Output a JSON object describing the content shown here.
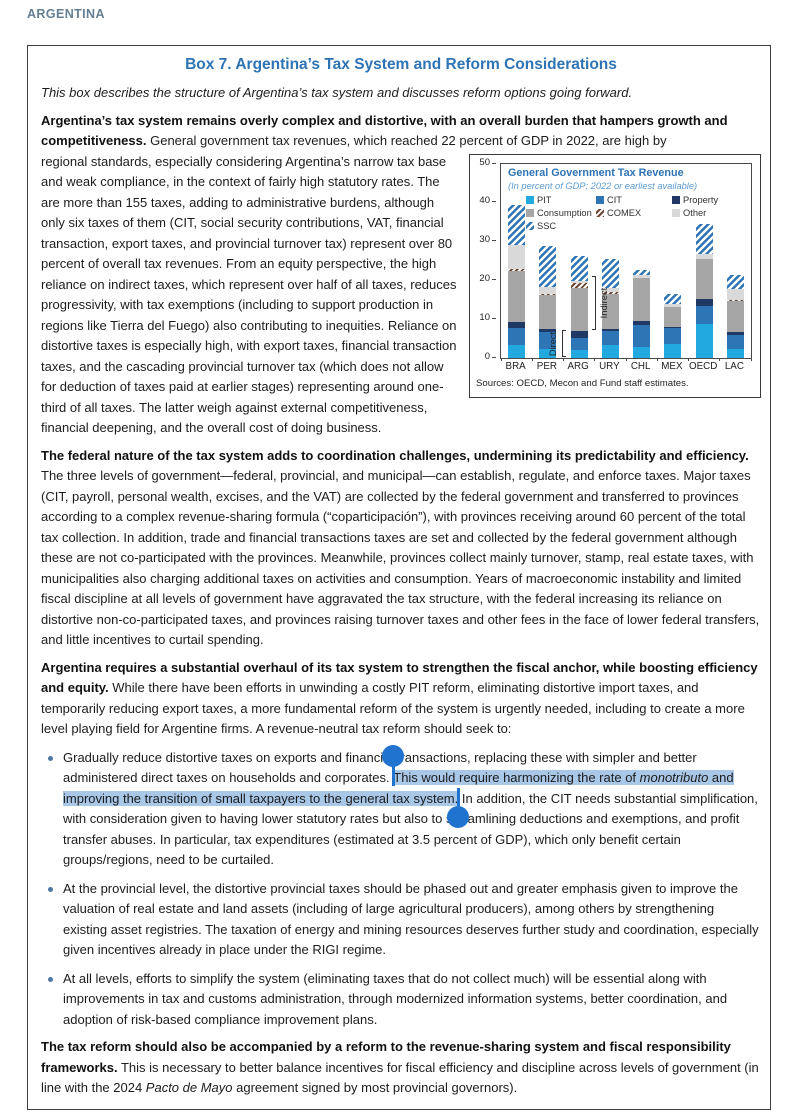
{
  "page": {
    "header": "ARGENTINA"
  },
  "colors": {
    "accent_blue": "#2e74b5",
    "selection_highlight": "#a9c7e7",
    "selection_handle": "#2073cf",
    "header_blue_gray": "#647e93"
  },
  "box": {
    "title": "Box 7. Argentina’s Tax System and Reform Considerations",
    "intro": "This box describes the structure of Argentina’s tax system and discusses reform options going forward.",
    "p1": {
      "lead": "Argentina’s tax system remains overly complex and distortive, with an overall burden that hampers growth and competitiveness.",
      "text_start": " General government tax revenues, which reached 22 percent of GDP in 2022, are high by",
      "text_rest": "regional standards, especially considering Argentina’s narrow tax base and weak compliance, in the context of fairly high statutory rates. The are more than 155 taxes, adding to administrative burdens, although only six taxes of them (CIT, social security contributions, VAT, financial transaction, export taxes, and provincial turnover tax) represent over 80 percent of overall tax revenues. From an equity perspective, the high reliance on indirect taxes, which represent over half of all taxes, reduces progressivity, with tax exemptions (including to support production in regions like Tierra del Fuego) also contributing to inequities. Reliance on distortive taxes is especially high, with export taxes, financial transaction taxes, and the cascading provincial turnover tax (which does not allow for deduction of taxes paid at earlier stages) representing around one-third of all taxes. The latter weigh against external competitiveness, financial deepening, and the overall cost of doing business."
    },
    "p2": {
      "lead": "The federal nature of the tax system adds to coordination challenges, undermining its predictability and efficiency.",
      "text": " The three levels of government—federal, provincial, and municipal—can establish, regulate, and enforce taxes. Major taxes (CIT, payroll, personal wealth, excises, and the VAT) are collected by the federal government and transferred to provinces according to a complex revenue-sharing formula (“coparticipación”), with provinces receiving around 60 percent of the total tax collection. In addition, trade and financial transactions taxes are set and collected by the federal government although these are not co-participated with the provinces. Meanwhile, provinces collect mainly turnover, stamp, real estate taxes, with municipalities also charging additional taxes on activities and consumption. Years of macroeconomic instability and limited fiscal discipline at all levels of government have aggravated the tax structure, with the federal increasing its reliance on distortive non-co-participated taxes, and provinces raising turnover taxes and other fees in the face of lower federal transfers, and little incentives to curtail spending."
    },
    "p3": {
      "lead": "Argentina requires a substantial overhaul of its tax system to strengthen the fiscal anchor, while boosting efficiency and equity.",
      "text": " While there have been efforts in unwinding a costly PIT reform, eliminating distortive import taxes, and temporarily reducing export taxes, a more fundamental reform of the system is urgently needed, including to create a more level playing field for Argentine firms. A revenue-neutral tax reform should seek to:"
    },
    "bullets": {
      "b1": {
        "pre": "Gradually reduce distortive taxes on exports and financial transactions, replacing these with simpler and better administered direct taxes on households and corporates. ",
        "hl1": "This would require harmonizing the rate of ",
        "hl_italic": "monotributo",
        "hl2": " and improving the transition of small taxpayers to the general tax system.",
        "post": " In addition, the CIT needs substantial simplification, with consideration given to having lower statutory rates but also to streamlining deductions and exemptions, and profit transfer abuses. In particular, tax expenditures (estimated at 3.5 percent of GDP), which only benefit certain groups/regions, need to be curtailed."
      },
      "b2": {
        "text": "At the provincial level, the distortive provincial taxes should be phased out and greater emphasis given to improve the valuation of real estate and land assets (including of large agricultural producers), among others by strengthening existing asset registries. The taxation of energy and mining resources deserves further study and coordination, especially given incentives already in place under the RIGI regime."
      },
      "b3": {
        "text": "At all levels, efforts to simplify the system (eliminating taxes that do not collect much) will be essential along with improvements in tax and customs administration, through modernized information systems, better coordination, and adoption of risk-based compliance improvement plans."
      }
    },
    "p4": {
      "lead": "The tax reform should also be accompanied by a reform to the revenue-sharing system and fiscal responsibility frameworks.",
      "text_pre": " This is necessary to better balance incentives for fiscal efficiency and discipline across levels of government (in line with the 2024 ",
      "italic": "Pacto de Mayo",
      "text_post": " agreement signed by most provincial governors)."
    }
  },
  "chart_data": {
    "type": "bar",
    "stacked": true,
    "title": "General Government Tax Revenue",
    "subtitle": "(In percent of GDP; 2022 or earliest available)",
    "categories": [
      "BRA",
      "PER",
      "ARG",
      "URY",
      "CHL",
      "MEX",
      "OECD",
      "LAC"
    ],
    "series": [
      {
        "name": "PIT",
        "color": "#22a9e0",
        "values": [
          3.2,
          2.2,
          2.0,
          3.3,
          2.6,
          3.5,
          8.6,
          2.2
        ]
      },
      {
        "name": "CIT",
        "color": "#2e75b6",
        "values": [
          4.4,
          4.4,
          3.1,
          3.6,
          5.8,
          4.0,
          4.6,
          3.7
        ]
      },
      {
        "name": "Property",
        "color": "#1f3864",
        "values": [
          1.5,
          0.7,
          1.8,
          0.4,
          1.0,
          0.4,
          1.8,
          0.6
        ]
      },
      {
        "name": "Consumption",
        "color": "#a6a6a6",
        "values": [
          13.1,
          8.7,
          11.1,
          9.2,
          11.0,
          5.0,
          10.3,
          8.0
        ]
      },
      {
        "name": "COMEX",
        "pattern": "hatch-dark",
        "values": [
          0.5,
          0.3,
          1.3,
          0.3,
          0.2,
          0.2,
          0.2,
          0.3
        ]
      },
      {
        "name": "Other",
        "color": "#d9d9d9",
        "values": [
          6.3,
          2.0,
          0.5,
          1.0,
          0.6,
          0.6,
          1.3,
          3.0
        ]
      },
      {
        "name": "SSC",
        "pattern": "hatch-blue",
        "values": [
          10.2,
          10.5,
          6.3,
          7.5,
          1.4,
          2.6,
          7.6,
          3.6
        ]
      }
    ],
    "ylim": [
      0,
      50
    ],
    "yticks": [
      0,
      10,
      20,
      30,
      40,
      50
    ],
    "grid": false,
    "legend_position": "top-inside",
    "annotations": [
      {
        "label": "Direct",
        "category": "ARG",
        "from": 0,
        "to": 7,
        "side": "left"
      },
      {
        "label": "Indirect",
        "category": "ARG",
        "from": 7,
        "to": 21,
        "side": "right"
      }
    ],
    "source": "Sources: OECD, Mecon and Fund staff estimates."
  }
}
